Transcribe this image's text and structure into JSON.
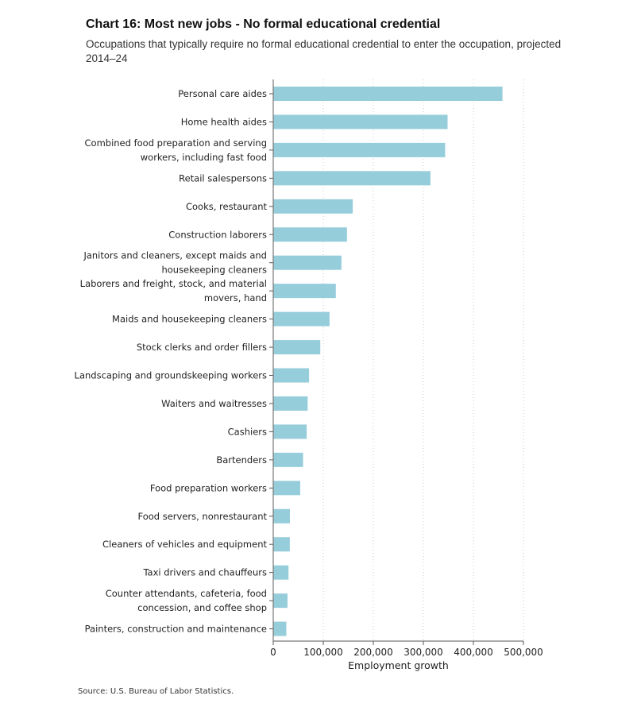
{
  "chart_data": {
    "type": "bar",
    "orientation": "horizontal",
    "title": "Chart 16: Most new jobs - No formal educational credential",
    "subtitle": "Occupations that typically require no formal educational credential to enter the occupation, projected 2014–24",
    "xlabel": "Employment growth",
    "ylabel": "",
    "xlim": [
      0,
      500000
    ],
    "x_ticks": [
      0,
      100000,
      200000,
      300000,
      400000,
      500000
    ],
    "x_tick_labels": [
      "0",
      "100,000",
      "200,000",
      "300,000",
      "400,000",
      "500,000"
    ],
    "grid": "vertical dotted",
    "bar_color": "#96cddb",
    "categories": [
      [
        "Personal care aides"
      ],
      [
        "Home health aides"
      ],
      [
        "Combined food preparation and serving",
        "workers, including fast food"
      ],
      [
        "Retail salespersons"
      ],
      [
        "Cooks, restaurant"
      ],
      [
        "Construction laborers"
      ],
      [
        "Janitors and cleaners, except maids and",
        "housekeeping cleaners"
      ],
      [
        "Laborers and freight, stock, and material",
        "movers, hand"
      ],
      [
        "Maids and housekeeping cleaners"
      ],
      [
        "Stock clerks and order fillers"
      ],
      [
        "Landscaping and groundskeeping workers"
      ],
      [
        "Waiters and waitresses"
      ],
      [
        "Cashiers"
      ],
      [
        "Bartenders"
      ],
      [
        "Food preparation workers"
      ],
      [
        "Food servers, nonrestaurant"
      ],
      [
        "Cleaners of vehicles and equipment"
      ],
      [
        "Taxi drivers and chauffeurs"
      ],
      [
        "Counter attendants, cafeteria, food",
        "concession, and coffee shop"
      ],
      [
        "Painters, construction and maintenance"
      ]
    ],
    "values": [
      458100,
      348400,
      343500,
      314200,
      158900,
      147400,
      136300,
      125100,
      112500,
      94000,
      71600,
      68800,
      66800,
      59600,
      53900,
      33300,
      33100,
      30500,
      28500,
      26100
    ]
  },
  "source": "Source: U.S. Bureau of Labor Statistics."
}
